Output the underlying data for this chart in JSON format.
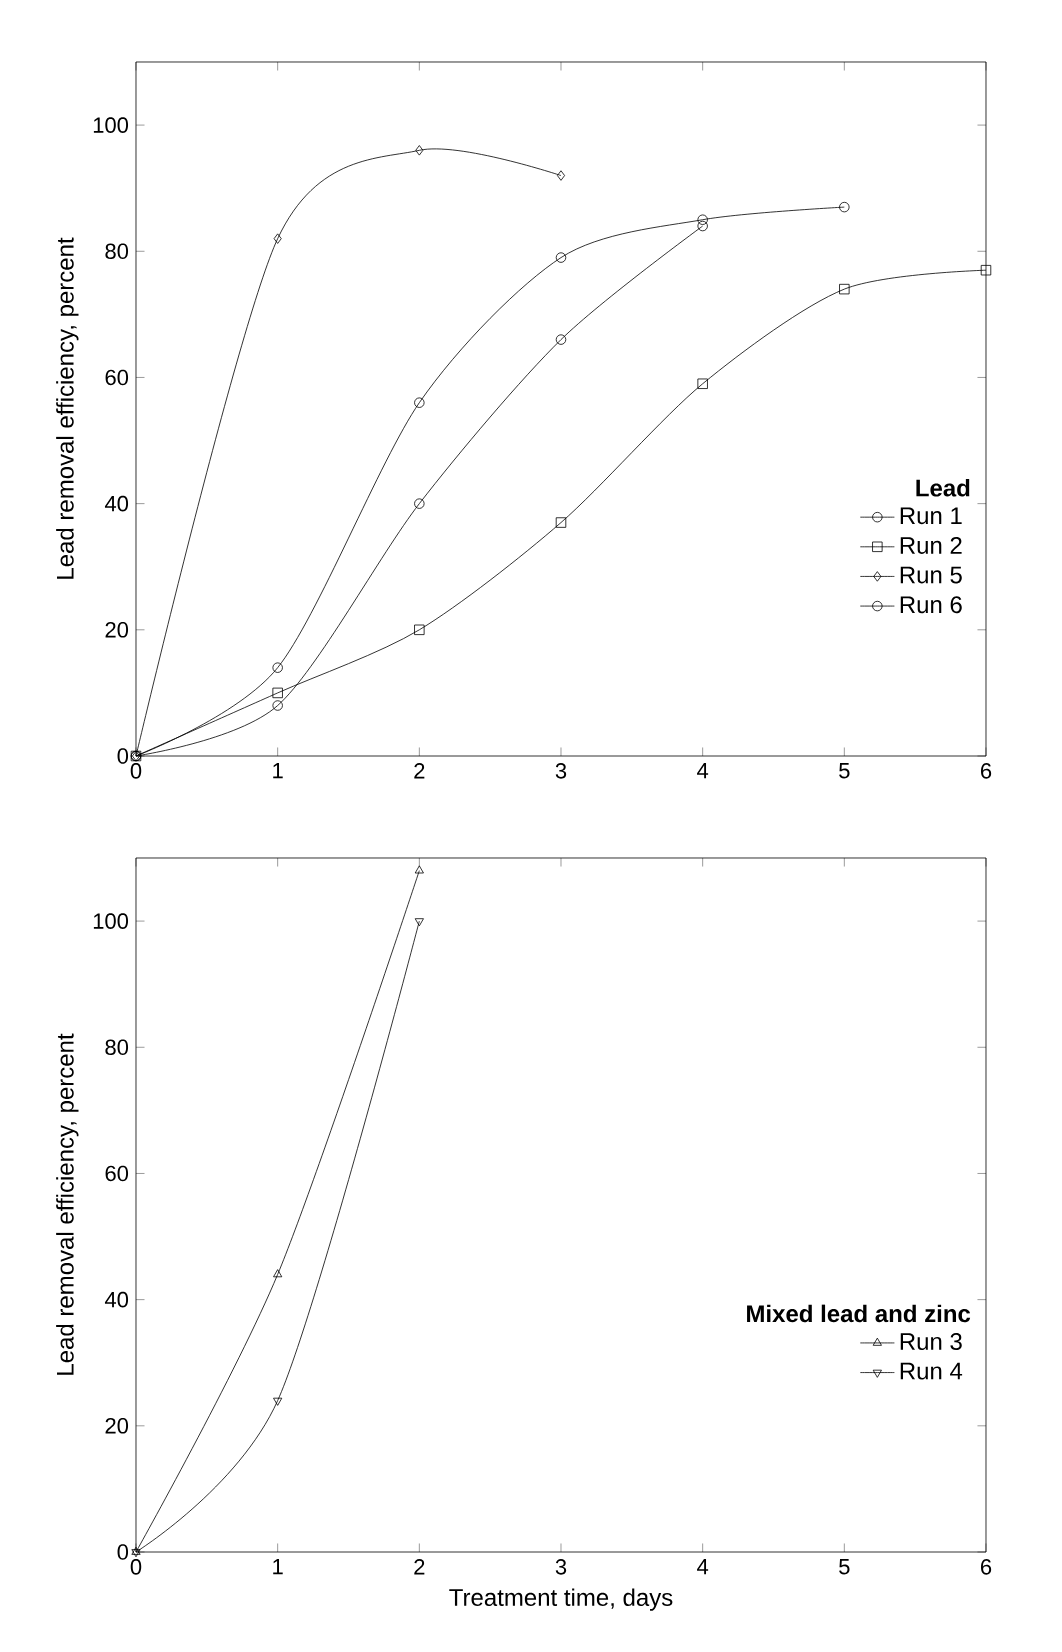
{
  "chart_data": [
    {
      "type": "line",
      "ylabel": "Lead removal efficiency, percent",
      "legend_title": "Lead",
      "legend": "right",
      "xlim": [
        0,
        6
      ],
      "ylim": [
        0,
        110
      ],
      "xticks": [
        0,
        1,
        2,
        3,
        4,
        5,
        6
      ],
      "yticks": [
        0,
        20,
        40,
        60,
        80,
        100
      ],
      "series": [
        {
          "name": "Run 1",
          "color": "#000000",
          "marker": "circle",
          "x": [
            0,
            1,
            2,
            3,
            4
          ],
          "values": [
            0,
            8,
            40,
            66,
            84
          ]
        },
        {
          "name": "Run 2",
          "color": "#000000",
          "marker": "square",
          "x": [
            0,
            1,
            2,
            3,
            4,
            5,
            6
          ],
          "values": [
            0,
            10,
            20,
            37,
            59,
            74,
            77
          ]
        },
        {
          "name": "Run 5",
          "color": "#000000",
          "marker": "diamond",
          "x": [
            0,
            1,
            2,
            3
          ],
          "values": [
            0,
            82,
            96,
            92
          ]
        },
        {
          "name": "Run 6",
          "color": "#000000",
          "marker": "circle",
          "x": [
            0,
            1,
            2,
            3,
            4,
            5
          ],
          "values": [
            0,
            14,
            56,
            79,
            85,
            87
          ]
        }
      ]
    },
    {
      "type": "line",
      "xlabel": "Treatment time, days",
      "ylabel": "Lead removal efficiency, percent",
      "legend_title": "Mixed lead and zinc",
      "legend": "right",
      "xlim": [
        0,
        6
      ],
      "ylim": [
        0,
        110
      ],
      "xticks": [
        0,
        1,
        2,
        3,
        4,
        5,
        6
      ],
      "yticks": [
        0,
        20,
        40,
        60,
        80,
        100
      ],
      "series": [
        {
          "name": "Run 3",
          "color": "#000000",
          "marker": "triangle",
          "x": [
            0,
            1,
            2
          ],
          "values": [
            0,
            44,
            108
          ]
        },
        {
          "name": "Run 4",
          "color": "#000000",
          "marker": "triangle down",
          "x": [
            0,
            1,
            2
          ],
          "values": [
            0,
            24,
            100
          ]
        }
      ]
    }
  ]
}
